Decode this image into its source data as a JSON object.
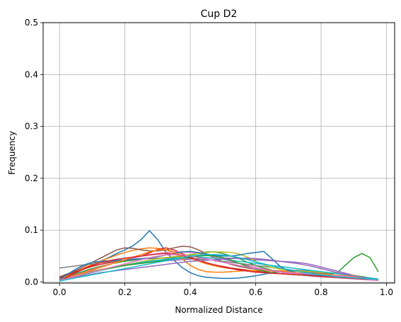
{
  "chart_data": {
    "type": "line",
    "title": "Cup D2",
    "xlabel": "Normalized Distance",
    "ylabel": "Frequency",
    "xlim": [
      -0.05,
      1.025
    ],
    "ylim": [
      -0.002,
      0.5
    ],
    "xticks": [
      0.0,
      0.2,
      0.4,
      0.6,
      0.8,
      1.0
    ],
    "xtick_labels": [
      "0.0",
      "0.2",
      "0.4",
      "0.6",
      "0.8",
      "1.0"
    ],
    "yticks": [
      0.0,
      0.1,
      0.2,
      0.3,
      0.4,
      0.5
    ],
    "ytick_labels": [
      "0.0",
      "0.1",
      "0.2",
      "0.3",
      "0.4",
      "0.5"
    ],
    "grid": true,
    "x": [
      0.0,
      0.025,
      0.05,
      0.075,
      0.1,
      0.125,
      0.15,
      0.175,
      0.2,
      0.225,
      0.25,
      0.275,
      0.3,
      0.325,
      0.35,
      0.375,
      0.4,
      0.425,
      0.45,
      0.475,
      0.5,
      0.525,
      0.55,
      0.575,
      0.6,
      0.625,
      0.65,
      0.675,
      0.7,
      0.725,
      0.75,
      0.775,
      0.8,
      0.825,
      0.85,
      0.875,
      0.9,
      0.925,
      0.95,
      0.975
    ],
    "series": [
      {
        "color": "#1f77b4",
        "values": [
          0.004,
          0.01,
          0.018,
          0.025,
          0.032,
          0.04,
          0.047,
          0.055,
          0.062,
          0.07,
          0.082,
          0.099,
          0.082,
          0.058,
          0.042,
          0.028,
          0.018,
          0.012,
          0.009,
          0.008,
          0.007,
          0.007,
          0.008,
          0.01,
          0.012,
          0.015,
          0.018,
          0.02,
          0.022,
          0.023,
          0.022,
          0.02,
          0.018,
          0.015,
          0.012,
          0.01,
          0.008,
          0.006,
          0.005,
          0.004
        ]
      },
      {
        "color": "#ff7f0e",
        "values": [
          0.004,
          0.012,
          0.02,
          0.027,
          0.034,
          0.04,
          0.046,
          0.052,
          0.057,
          0.061,
          0.064,
          0.066,
          0.065,
          0.062,
          0.058,
          0.052,
          0.046,
          0.04,
          0.035,
          0.031,
          0.028,
          0.026,
          0.024,
          0.023,
          0.022,
          0.022,
          0.022,
          0.022,
          0.021,
          0.021,
          0.02,
          0.019,
          0.018,
          0.017,
          0.016,
          0.014,
          0.012,
          0.01,
          0.008,
          0.006
        ]
      },
      {
        "color": "#2ca02c",
        "values": [
          0.004,
          0.01,
          0.016,
          0.021,
          0.026,
          0.03,
          0.034,
          0.037,
          0.04,
          0.042,
          0.044,
          0.045,
          0.046,
          0.047,
          0.048,
          0.05,
          0.052,
          0.055,
          0.058,
          0.058,
          0.055,
          0.05,
          0.045,
          0.038,
          0.032,
          0.027,
          0.023,
          0.02,
          0.018,
          0.016,
          0.015,
          0.014,
          0.014,
          0.015,
          0.018,
          0.033,
          0.047,
          0.055,
          0.047,
          0.02
        ]
      },
      {
        "color": "#d62728",
        "values": [
          0.008,
          0.014,
          0.02,
          0.025,
          0.03,
          0.034,
          0.037,
          0.04,
          0.043,
          0.046,
          0.05,
          0.056,
          0.063,
          0.066,
          0.062,
          0.055,
          0.048,
          0.042,
          0.037,
          0.033,
          0.03,
          0.027,
          0.025,
          0.023,
          0.021,
          0.019,
          0.017,
          0.016,
          0.015,
          0.014,
          0.013,
          0.012,
          0.011,
          0.01,
          0.009,
          0.008,
          0.007,
          0.006,
          0.005,
          0.004
        ]
      },
      {
        "color": "#9467bd",
        "values": [
          0.003,
          0.008,
          0.013,
          0.017,
          0.021,
          0.024,
          0.027,
          0.03,
          0.032,
          0.034,
          0.036,
          0.038,
          0.04,
          0.041,
          0.042,
          0.043,
          0.044,
          0.045,
          0.046,
          0.046,
          0.046,
          0.046,
          0.045,
          0.044,
          0.043,
          0.042,
          0.041,
          0.04,
          0.039,
          0.038,
          0.036,
          0.033,
          0.029,
          0.025,
          0.021,
          0.017,
          0.013,
          0.01,
          0.007,
          0.004
        ]
      },
      {
        "color": "#8c564b",
        "values": [
          0.01,
          0.016,
          0.022,
          0.03,
          0.038,
          0.046,
          0.054,
          0.062,
          0.066,
          0.065,
          0.062,
          0.06,
          0.06,
          0.062,
          0.066,
          0.069,
          0.068,
          0.062,
          0.054,
          0.046,
          0.039,
          0.034,
          0.03,
          0.027,
          0.025,
          0.023,
          0.021,
          0.019,
          0.018,
          0.017,
          0.016,
          0.015,
          0.014,
          0.013,
          0.012,
          0.011,
          0.009,
          0.007,
          0.005,
          0.003
        ]
      },
      {
        "color": "#e377c2",
        "values": [
          0.004,
          0.009,
          0.014,
          0.019,
          0.024,
          0.029,
          0.034,
          0.038,
          0.042,
          0.046,
          0.05,
          0.053,
          0.055,
          0.057,
          0.058,
          0.058,
          0.057,
          0.055,
          0.052,
          0.048,
          0.044,
          0.04,
          0.036,
          0.032,
          0.028,
          0.025,
          0.022,
          0.019,
          0.017,
          0.015,
          0.013,
          0.011,
          0.01,
          0.009,
          0.008,
          0.007,
          0.006,
          0.005,
          0.004,
          0.003
        ]
      },
      {
        "color": "#7f7f7f",
        "values": [
          0.027,
          0.029,
          0.031,
          0.033,
          0.035,
          0.037,
          0.039,
          0.041,
          0.042,
          0.043,
          0.044,
          0.045,
          0.046,
          0.046,
          0.046,
          0.046,
          0.045,
          0.044,
          0.043,
          0.042,
          0.04,
          0.038,
          0.036,
          0.034,
          0.032,
          0.03,
          0.028,
          0.026,
          0.024,
          0.022,
          0.02,
          0.018,
          0.016,
          0.014,
          0.012,
          0.01,
          0.008,
          0.007,
          0.006,
          0.005
        ]
      },
      {
        "color": "#bcbd22",
        "values": [
          0.004,
          0.008,
          0.012,
          0.016,
          0.02,
          0.024,
          0.027,
          0.03,
          0.033,
          0.036,
          0.039,
          0.042,
          0.045,
          0.047,
          0.049,
          0.051,
          0.053,
          0.055,
          0.057,
          0.058,
          0.058,
          0.057,
          0.054,
          0.048,
          0.04,
          0.033,
          0.028,
          0.025,
          0.023,
          0.022,
          0.021,
          0.02,
          0.019,
          0.018,
          0.017,
          0.015,
          0.013,
          0.011,
          0.008,
          0.005
        ]
      },
      {
        "color": "#17becf",
        "values": [
          0.002,
          0.006,
          0.01,
          0.014,
          0.018,
          0.022,
          0.026,
          0.029,
          0.032,
          0.035,
          0.038,
          0.04,
          0.042,
          0.044,
          0.046,
          0.047,
          0.048,
          0.048,
          0.047,
          0.046,
          0.044,
          0.042,
          0.04,
          0.038,
          0.036,
          0.034,
          0.032,
          0.03,
          0.028,
          0.026,
          0.024,
          0.022,
          0.02,
          0.018,
          0.016,
          0.014,
          0.012,
          0.01,
          0.008,
          0.006
        ]
      },
      {
        "color": "#1f77b4",
        "values": [
          0.005,
          0.015,
          0.025,
          0.033,
          0.038,
          0.04,
          0.041,
          0.042,
          0.043,
          0.044,
          0.045,
          0.047,
          0.049,
          0.052,
          0.055,
          0.058,
          0.059,
          0.057,
          0.054,
          0.051,
          0.05,
          0.05,
          0.052,
          0.055,
          0.057,
          0.059,
          0.045,
          0.03,
          0.022,
          0.018,
          0.015,
          0.013,
          0.012,
          0.011,
          0.01,
          0.009,
          0.008,
          0.007,
          0.006,
          0.005
        ]
      },
      {
        "color": "#ff7f0e",
        "values": [
          0.003,
          0.008,
          0.013,
          0.018,
          0.023,
          0.028,
          0.033,
          0.038,
          0.043,
          0.048,
          0.053,
          0.058,
          0.062,
          0.063,
          0.058,
          0.045,
          0.032,
          0.024,
          0.02,
          0.019,
          0.019,
          0.02,
          0.021,
          0.022,
          0.022,
          0.022,
          0.021,
          0.02,
          0.019,
          0.018,
          0.017,
          0.016,
          0.015,
          0.014,
          0.013,
          0.012,
          0.01,
          0.008,
          0.006,
          0.004
        ]
      },
      {
        "color": "#2ca02c",
        "values": [
          0.003,
          0.007,
          0.011,
          0.015,
          0.019,
          0.023,
          0.026,
          0.029,
          0.032,
          0.034,
          0.036,
          0.038,
          0.04,
          0.042,
          0.044,
          0.046,
          0.048,
          0.05,
          0.051,
          0.05,
          0.047,
          0.042,
          0.036,
          0.03,
          0.025,
          0.021,
          0.018,
          0.016,
          0.015,
          0.014,
          0.013,
          0.012,
          0.011,
          0.01,
          0.009,
          0.008,
          0.007,
          0.006,
          0.005,
          0.004
        ]
      },
      {
        "color": "#d62728",
        "values": [
          0.002,
          0.01,
          0.018,
          0.026,
          0.032,
          0.037,
          0.041,
          0.044,
          0.046,
          0.048,
          0.05,
          0.052,
          0.054,
          0.055,
          0.054,
          0.051,
          0.047,
          0.042,
          0.037,
          0.033,
          0.029,
          0.026,
          0.023,
          0.021,
          0.019,
          0.018,
          0.017,
          0.016,
          0.015,
          0.014,
          0.013,
          0.012,
          0.011,
          0.01,
          0.009,
          0.008,
          0.007,
          0.006,
          0.005,
          0.004
        ]
      },
      {
        "color": "#9467bd",
        "values": [
          0.003,
          0.006,
          0.009,
          0.012,
          0.015,
          0.018,
          0.02,
          0.022,
          0.024,
          0.026,
          0.028,
          0.03,
          0.032,
          0.034,
          0.036,
          0.038,
          0.04,
          0.041,
          0.042,
          0.043,
          0.044,
          0.045,
          0.046,
          0.046,
          0.045,
          0.044,
          0.042,
          0.04,
          0.038,
          0.036,
          0.033,
          0.03,
          0.026,
          0.022,
          0.018,
          0.015,
          0.012,
          0.009,
          0.006,
          0.004
        ]
      },
      {
        "color": "#e377c2",
        "values": [
          0.003,
          0.007,
          0.011,
          0.015,
          0.019,
          0.023,
          0.027,
          0.031,
          0.035,
          0.039,
          0.043,
          0.047,
          0.05,
          0.052,
          0.053,
          0.052,
          0.05,
          0.047,
          0.044,
          0.041,
          0.038,
          0.035,
          0.032,
          0.029,
          0.026,
          0.024,
          0.022,
          0.02,
          0.018,
          0.017,
          0.016,
          0.015,
          0.014,
          0.013,
          0.012,
          0.011,
          0.009,
          0.007,
          0.005,
          0.003
        ]
      },
      {
        "color": "#17becf",
        "values": [
          0.002,
          0.005,
          0.008,
          0.011,
          0.014,
          0.017,
          0.02,
          0.023,
          0.026,
          0.029,
          0.032,
          0.035,
          0.038,
          0.041,
          0.044,
          0.047,
          0.05,
          0.052,
          0.053,
          0.053,
          0.052,
          0.05,
          0.047,
          0.043,
          0.039,
          0.035,
          0.031,
          0.027,
          0.024,
          0.021,
          0.018,
          0.016,
          0.014,
          0.012,
          0.01,
          0.009,
          0.008,
          0.007,
          0.006,
          0.005
        ]
      }
    ]
  }
}
